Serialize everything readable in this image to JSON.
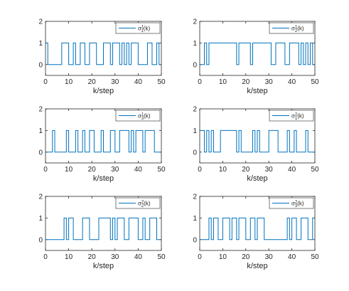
{
  "chart_data": [
    {
      "type": "line",
      "step": true,
      "xlabel": "k/step",
      "xlim": [
        0,
        50
      ],
      "ylim": [
        -0.5,
        2
      ],
      "xticks": [
        "0",
        "10",
        "20",
        "30",
        "40",
        "50"
      ],
      "yticks": [
        "0",
        "1",
        "2"
      ],
      "legend_loc": "top-right",
      "color": "#0072BD",
      "series": [
        {
          "name": "σ₁¹(k)",
          "legend": {
            "base": "σ",
            "sub": "1",
            "sup": "1",
            "arg": "(k)"
          },
          "x": [
            0,
            1,
            1,
            7,
            7,
            10,
            10,
            12,
            12,
            13,
            13,
            15,
            15,
            17,
            17,
            19,
            19,
            22,
            22,
            25,
            25,
            28,
            28,
            29,
            29,
            32,
            32,
            33,
            33,
            34,
            34,
            35,
            35,
            36,
            36,
            37,
            37,
            40,
            40,
            44,
            44,
            46,
            46,
            48,
            48,
            49,
            49,
            50
          ],
          "y": [
            1,
            1,
            0,
            0,
            1,
            1,
            0,
            0,
            1,
            1,
            0,
            0,
            1,
            1,
            0,
            0,
            1,
            1,
            0,
            0,
            1,
            1,
            0,
            0,
            1,
            1,
            0,
            0,
            1,
            1,
            0,
            0,
            1,
            1,
            0,
            0,
            1,
            1,
            0,
            0,
            1,
            1,
            0,
            0,
            1,
            1,
            0,
            0
          ]
        }
      ]
    },
    {
      "type": "line",
      "step": true,
      "xlabel": "k/step",
      "xlim": [
        0,
        50
      ],
      "ylim": [
        -0.5,
        2
      ],
      "xticks": [
        "0",
        "10",
        "20",
        "30",
        "40",
        "50"
      ],
      "yticks": [
        "0",
        "1",
        "2"
      ],
      "legend_loc": "top-right",
      "color": "#0072BD",
      "series": [
        {
          "name": "σ₂¹(k)",
          "legend": {
            "base": "σ",
            "sub": "2",
            "sup": "1",
            "arg": "(k)"
          },
          "x": [
            0,
            2,
            2,
            3,
            3,
            4,
            4,
            16,
            16,
            17,
            17,
            22,
            22,
            23,
            23,
            31,
            31,
            33,
            33,
            37,
            37,
            39,
            39,
            43,
            43,
            44,
            44,
            45,
            45,
            46,
            46,
            47,
            47,
            48,
            48,
            49,
            49,
            50
          ],
          "y": [
            0,
            0,
            1,
            1,
            0,
            0,
            1,
            1,
            0,
            0,
            1,
            1,
            0,
            0,
            1,
            1,
            0,
            0,
            1,
            1,
            0,
            0,
            1,
            1,
            0,
            0,
            1,
            1,
            0,
            0,
            1,
            1,
            0,
            0,
            1,
            1,
            0,
            0
          ]
        }
      ]
    },
    {
      "type": "line",
      "step": true,
      "xlabel": "k/step",
      "xlim": [
        0,
        50
      ],
      "ylim": [
        -0.5,
        2
      ],
      "xticks": [
        "0",
        "10",
        "20",
        "30",
        "40",
        "50"
      ],
      "yticks": [
        "0",
        "1",
        "2"
      ],
      "legend_loc": "top-right",
      "color": "#0072BD",
      "series": [
        {
          "name": "σ₃¹(k)",
          "legend": {
            "base": "σ",
            "sub": "3",
            "sup": "1",
            "arg": "(k)"
          },
          "x": [
            0,
            3,
            3,
            4,
            4,
            9,
            9,
            10,
            10,
            13,
            13,
            14,
            14,
            16,
            16,
            17,
            17,
            19,
            19,
            21,
            21,
            24,
            24,
            25,
            25,
            28,
            28,
            30,
            30,
            32,
            32,
            36,
            36,
            37,
            37,
            38,
            38,
            39,
            39,
            42,
            42,
            43,
            43,
            47,
            47,
            48,
            48,
            50
          ],
          "y": [
            0,
            0,
            1,
            1,
            0,
            0,
            1,
            1,
            0,
            0,
            1,
            1,
            0,
            0,
            1,
            1,
            0,
            0,
            1,
            1,
            0,
            0,
            1,
            1,
            0,
            0,
            1,
            1,
            0,
            0,
            1,
            1,
            0,
            0,
            1,
            1,
            0,
            0,
            1,
            1,
            0,
            0,
            1,
            1,
            0,
            0,
            0,
            0
          ]
        }
      ]
    },
    {
      "type": "line",
      "step": true,
      "xlabel": "k/step",
      "xlim": [
        0,
        50
      ],
      "ylim": [
        -0.5,
        2
      ],
      "xticks": [
        "0",
        "10",
        "20",
        "30",
        "40",
        "50"
      ],
      "yticks": [
        "0",
        "1",
        "2"
      ],
      "legend_loc": "top-right",
      "color": "#0072BD",
      "series": [
        {
          "name": "σ₁²(k)",
          "legend": {
            "base": "σ",
            "sub": "1",
            "sup": "2",
            "arg": "(k)"
          },
          "x": [
            0,
            2,
            2,
            3,
            3,
            4,
            4,
            5,
            5,
            6,
            6,
            9,
            9,
            16,
            16,
            17,
            17,
            18,
            18,
            23,
            23,
            24,
            24,
            25,
            25,
            26,
            26,
            30,
            30,
            34,
            34,
            38,
            38,
            39,
            39,
            41,
            41,
            42,
            42,
            46,
            46,
            47,
            47,
            50
          ],
          "y": [
            1,
            1,
            0,
            0,
            1,
            1,
            0,
            0,
            1,
            1,
            0,
            0,
            1,
            1,
            0,
            0,
            1,
            1,
            0,
            0,
            1,
            1,
            0,
            0,
            1,
            1,
            0,
            0,
            1,
            1,
            0,
            0,
            1,
            1,
            0,
            0,
            1,
            1,
            0,
            0,
            1,
            1,
            0,
            0
          ]
        }
      ]
    },
    {
      "type": "line",
      "step": true,
      "xlabel": "k/step",
      "xlim": [
        0,
        50
      ],
      "ylim": [
        -0.5,
        2
      ],
      "xticks": [
        "0",
        "10",
        "20",
        "30",
        "40",
        "50"
      ],
      "yticks": [
        "0",
        "1",
        "2"
      ],
      "legend_loc": "top-right",
      "color": "#0072BD",
      "series": [
        {
          "name": "σ₂²(k)",
          "legend": {
            "base": "σ",
            "sub": "2",
            "sup": "2",
            "arg": "(k)"
          },
          "x": [
            0,
            8,
            8,
            9,
            9,
            10,
            10,
            12,
            12,
            16,
            16,
            19,
            19,
            23,
            23,
            28,
            28,
            29,
            29,
            30,
            30,
            31,
            31,
            34,
            34,
            36,
            36,
            40,
            40,
            42,
            42,
            43,
            43,
            45,
            45,
            48,
            48,
            50
          ],
          "y": [
            0,
            0,
            1,
            1,
            0,
            0,
            1,
            1,
            0,
            0,
            1,
            1,
            0,
            0,
            1,
            1,
            0,
            0,
            1,
            1,
            0,
            0,
            1,
            1,
            0,
            0,
            1,
            1,
            0,
            0,
            1,
            1,
            0,
            0,
            1,
            1,
            0,
            0
          ]
        }
      ]
    },
    {
      "type": "line",
      "step": true,
      "xlabel": "k/step",
      "xlim": [
        0,
        50
      ],
      "ylim": [
        -0.5,
        2
      ],
      "xticks": [
        "0",
        "10",
        "20",
        "30",
        "40",
        "50"
      ],
      "yticks": [
        "0",
        "1",
        "2"
      ],
      "legend_loc": "top-right",
      "color": "#0072BD",
      "series": [
        {
          "name": "σ₃²(k)",
          "legend": {
            "base": "σ",
            "sub": "3",
            "sup": "2",
            "arg": "(k)"
          },
          "x": [
            0,
            4,
            4,
            5,
            5,
            6,
            6,
            8,
            8,
            10,
            10,
            13,
            13,
            14,
            14,
            16,
            16,
            17,
            17,
            20,
            20,
            22,
            22,
            24,
            24,
            25,
            25,
            28,
            28,
            38,
            38,
            39,
            39,
            40,
            40,
            42,
            42,
            44,
            44,
            47,
            47,
            49,
            49,
            50
          ],
          "y": [
            0,
            0,
            1,
            1,
            0,
            0,
            1,
            1,
            0,
            0,
            1,
            1,
            0,
            0,
            1,
            1,
            0,
            0,
            1,
            1,
            0,
            0,
            1,
            1,
            0,
            0,
            1,
            1,
            0,
            0,
            1,
            1,
            0,
            0,
            1,
            1,
            0,
            0,
            1,
            1,
            0,
            0,
            1,
            1
          ]
        }
      ]
    }
  ]
}
